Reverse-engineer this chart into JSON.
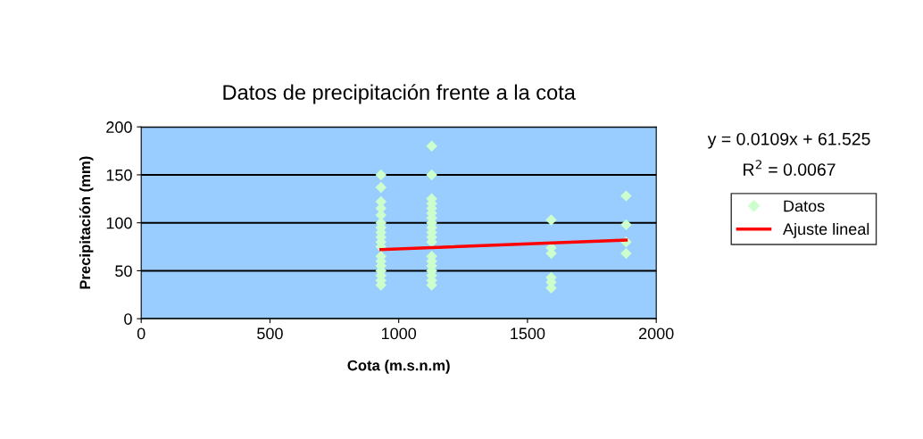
{
  "chart_data": {
    "type": "scatter",
    "title": "Datos de precipitación frente a la cota",
    "xlabel": "Cota (m.s.n.m)",
    "ylabel": "Precipitación (mm)",
    "annotations": [
      "y = 0.0109x + 61.525",
      "R$^{2}$ = 0.0067"
    ],
    "series": [
      {
        "name": "Datos",
        "color": "#ccffcc",
        "marker": "diamond",
        "x": [
          931,
          931,
          931,
          931,
          931,
          931,
          931,
          931,
          931,
          931,
          931,
          931,
          931,
          931,
          931,
          931,
          931,
          931,
          1128,
          1128,
          1128,
          1128,
          1128,
          1128,
          1128,
          1128,
          1128,
          1128,
          1128,
          1128,
          1128,
          1128,
          1128,
          1128,
          1128,
          1128,
          1128,
          1592,
          1592,
          1592,
          1592,
          1592,
          1592,
          1883,
          1883,
          1883,
          1883
        ],
        "values": [
          150,
          137,
          122,
          115,
          108,
          100,
          95,
          90,
          85,
          80,
          75,
          65,
          60,
          55,
          50,
          45,
          40,
          35,
          180,
          150,
          125,
          120,
          115,
          110,
          105,
          100,
          95,
          90,
          85,
          80,
          65,
          60,
          55,
          50,
          45,
          40,
          35,
          103,
          74,
          68,
          43,
          38,
          32,
          128,
          98,
          80,
          68
        ]
      },
      {
        "name": "Ajuste lineal",
        "type": "line",
        "color": "#ff0000",
        "marker": "none",
        "x": [
          931,
          1883
        ],
        "values": [
          72,
          82
        ]
      }
    ],
    "xlim": [
      0,
      2000
    ],
    "xticks": [
      0,
      500,
      1000,
      1500,
      2000
    ],
    "ylim": [
      0,
      200
    ],
    "yticks": [
      0,
      50,
      100,
      150,
      200
    ],
    "grid": "y",
    "legend": "right"
  }
}
